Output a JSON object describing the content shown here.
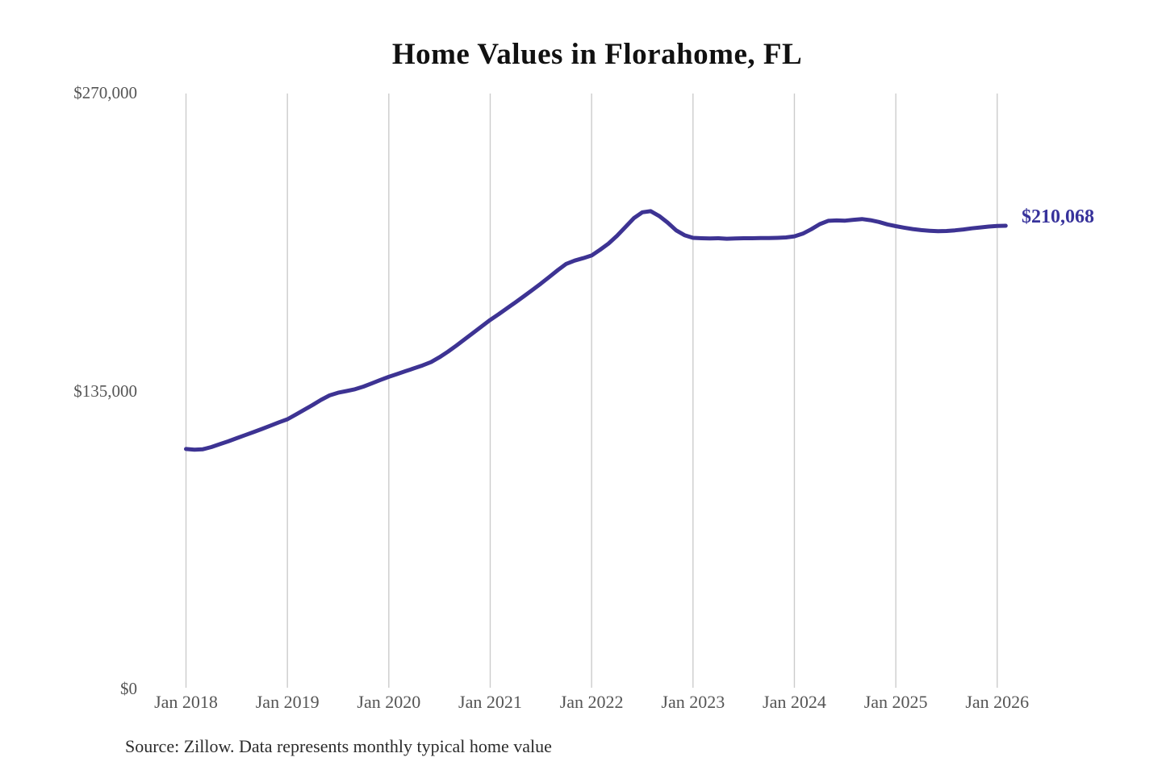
{
  "chart": {
    "title": "Home Values in Florahome, FL",
    "latest_value_label": "$210,068",
    "source": "Source: Zillow. Data represents monthly typical home value",
    "colors": {
      "line": "#3d3393",
      "grid": "#cccccc",
      "tick_label": "#555555",
      "title": "#111111",
      "annotation": "#37329b",
      "source_text": "#2b2b2b"
    }
  },
  "chart_data": {
    "type": "line",
    "title": "Home Values in Florahome, FL",
    "source": "Source: Zillow. Data represents monthly typical home value",
    "legend": "none",
    "grid": "vertical-only",
    "ylim": [
      0,
      270000
    ],
    "y_ticks": [
      0,
      135000,
      270000
    ],
    "y_tick_labels": [
      "$0",
      "$135,000",
      "$270,000"
    ],
    "x_tick_labels": [
      "Jan 2018",
      "Jan 2019",
      "Jan 2020",
      "Jan 2021",
      "Jan 2022",
      "Jan 2023",
      "Jan 2024",
      "Jan 2025",
      "Jan 2026"
    ],
    "x_start_month": "2018-01",
    "x_end_month": "2026-02",
    "latest_value": 210068,
    "annotations": [
      {
        "text": "$210,068",
        "position": "end-of-line"
      }
    ],
    "series": [
      {
        "name": "Monthly typical home value",
        "values": [
          108900,
          108600,
          108800,
          109800,
          111100,
          112400,
          113800,
          115200,
          116600,
          118000,
          119500,
          121000,
          122400,
          124500,
          126700,
          128900,
          131200,
          133200,
          134400,
          135200,
          136000,
          137200,
          138700,
          140200,
          141600,
          142900,
          144200,
          145500,
          146800,
          148300,
          150500,
          153000,
          155800,
          158700,
          161600,
          164500,
          167400,
          170000,
          172700,
          175400,
          178200,
          181000,
          183900,
          186900,
          190000,
          192800,
          194300,
          195400,
          196600,
          199200,
          202000,
          205500,
          209500,
          213500,
          216200,
          216700,
          214500,
          211500,
          208000,
          205800,
          204600,
          204400,
          204300,
          204400,
          204200,
          204300,
          204400,
          204400,
          204500,
          204500,
          204600,
          204800,
          205300,
          206500,
          208500,
          210800,
          212300,
          212500,
          212400,
          212800,
          213100,
          212600,
          211800,
          210700,
          209900,
          209200,
          208600,
          208100,
          207800,
          207600,
          207700,
          208000,
          208400,
          208900,
          209300,
          209700,
          210000,
          210068
        ]
      }
    ]
  }
}
